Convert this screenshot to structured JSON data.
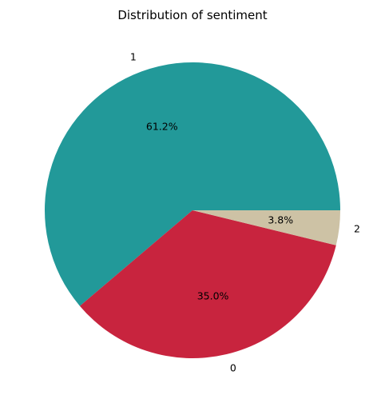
{
  "chart_data": {
    "type": "pie",
    "title": "Distribution of sentiment",
    "slices": [
      {
        "label": "1",
        "value": 61.2,
        "pct_label": "61.2%",
        "color": "#229999"
      },
      {
        "label": "0",
        "value": 35.0,
        "pct_label": "35.0%",
        "color": "#C8243E"
      },
      {
        "label": "2",
        "value": 3.8,
        "pct_label": "3.8%",
        "color": "#CDC2A5"
      }
    ],
    "start_angle": "0 degrees (3 o'clock), counter-clockwise",
    "legend": "none"
  }
}
